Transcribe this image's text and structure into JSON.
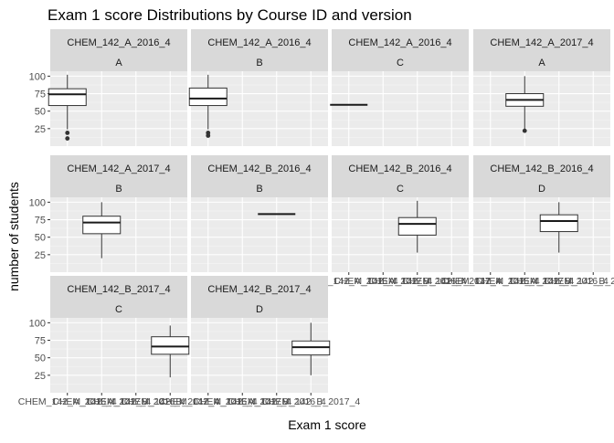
{
  "chart_data": {
    "type": "boxplot-facets",
    "title": "Exam 1 score Distributions by Course ID and version",
    "xlabel": "Exam 1 score",
    "ylabel": "number of students",
    "ylim": [
      0,
      107
    ],
    "y_ticks": [
      25,
      50,
      75,
      100
    ],
    "x_categories": [
      "CHEM_142_A_2016_4",
      "CHEM_142_A_2017_4",
      "CHEM_142_B_2016_4",
      "CHEM_142_B_2017_4"
    ],
    "x_tick_labels_collapsed": [
      "CHEM_",
      "CHEM_142",
      "CHEM_142_A",
      "CHEM_142_B",
      "142_B_2017_4"
    ],
    "grid": true,
    "panel_background": "#ebebeb",
    "strip_background": "#d9d9d9",
    "facets": [
      {
        "course": "CHEM_142_A_2016_4",
        "version": "A",
        "x_index": 0,
        "box": {
          "min": 24,
          "q1": 58,
          "median": 74,
          "q3": 82,
          "max": 102
        },
        "outliers": [
          19,
          11
        ]
      },
      {
        "course": "CHEM_142_A_2016_4",
        "version": "B",
        "x_index": 0,
        "box": {
          "min": 24,
          "q1": 58,
          "median": 68,
          "q3": 83,
          "max": 102
        },
        "outliers": [
          19,
          15
        ]
      },
      {
        "course": "CHEM_142_A_2016_4",
        "version": "C",
        "x_index": 0,
        "box": {
          "min": 59,
          "q1": 59,
          "median": 59,
          "q3": 59,
          "max": 59
        },
        "outliers": []
      },
      {
        "course": "CHEM_142_A_2017_4",
        "version": "A",
        "x_index": 1,
        "box": {
          "min": 22,
          "q1": 57,
          "median": 66,
          "q3": 75,
          "max": 100
        },
        "outliers": [
          22
        ]
      },
      {
        "course": "CHEM_142_A_2017_4",
        "version": "B",
        "x_index": 1,
        "box": {
          "min": 20,
          "q1": 55,
          "median": 71,
          "q3": 80,
          "max": 100
        },
        "outliers": []
      },
      {
        "course": "CHEM_142_B_2016_4",
        "version": "B",
        "x_index": 2,
        "box": {
          "min": 83,
          "q1": 83,
          "median": 83,
          "q3": 83,
          "max": 83
        },
        "outliers": []
      },
      {
        "course": "CHEM_142_B_2016_4",
        "version": "C",
        "x_index": 2,
        "box": {
          "min": 28,
          "q1": 53,
          "median": 69,
          "q3": 78,
          "max": 102
        },
        "outliers": []
      },
      {
        "course": "CHEM_142_B_2016_4",
        "version": "D",
        "x_index": 2,
        "box": {
          "min": 28,
          "q1": 58,
          "median": 73,
          "q3": 82,
          "max": 100
        },
        "outliers": []
      },
      {
        "course": "CHEM_142_B_2017_4",
        "version": "C",
        "x_index": 3,
        "box": {
          "min": 22,
          "q1": 55,
          "median": 66,
          "q3": 80,
          "max": 96
        },
        "outliers": []
      },
      {
        "course": "CHEM_142_B_2017_4",
        "version": "D",
        "x_index": 3,
        "box": {
          "min": 25,
          "q1": 54,
          "median": 65,
          "q3": 74,
          "max": 100
        },
        "outliers": []
      }
    ]
  }
}
